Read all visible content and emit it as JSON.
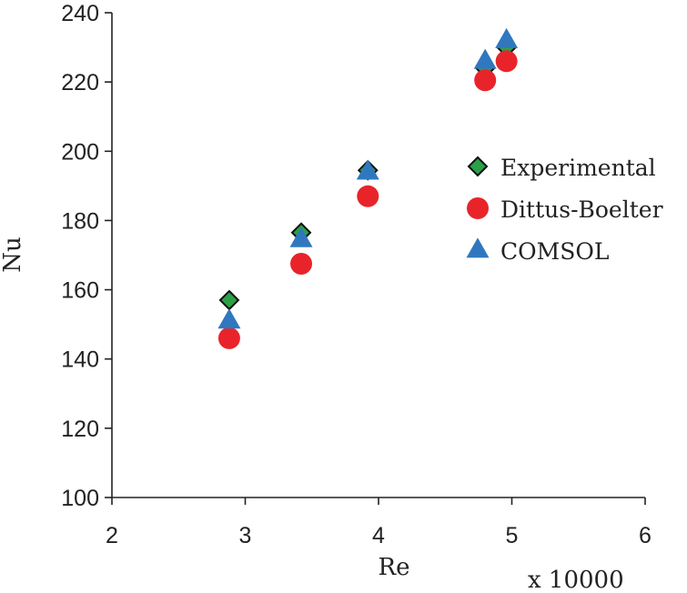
{
  "chart_data": {
    "type": "scatter",
    "title": "",
    "xlabel": "Re",
    "ylabel": "Nu",
    "x_multiplier": "x 10000",
    "xlim": [
      2,
      6
    ],
    "ylim": [
      100,
      240
    ],
    "x_ticks": [
      2,
      3,
      4,
      5,
      6
    ],
    "y_ticks": [
      100,
      120,
      140,
      160,
      180,
      200,
      220,
      240
    ],
    "grid": false,
    "legend_position": "right",
    "series": [
      {
        "name": "Experimental",
        "marker": "diamond",
        "color": "#2ca048",
        "points": [
          [
            2.88,
            157
          ],
          [
            3.42,
            176.5
          ],
          [
            3.92,
            194.5
          ],
          [
            4.8,
            224
          ],
          [
            4.96,
            230
          ]
        ]
      },
      {
        "name": "Dittus-Boelter",
        "marker": "circle",
        "color": "#e8242a",
        "points": [
          [
            2.88,
            146
          ],
          [
            3.42,
            167.5
          ],
          [
            3.92,
            187
          ],
          [
            4.8,
            220.5
          ],
          [
            4.96,
            226
          ]
        ]
      },
      {
        "name": "COMSOL",
        "marker": "triangle",
        "color": "#2f78bf",
        "points": [
          [
            2.88,
            151
          ],
          [
            3.42,
            174.5
          ],
          [
            3.92,
            194
          ],
          [
            4.8,
            226
          ],
          [
            4.96,
            232
          ]
        ]
      }
    ]
  }
}
